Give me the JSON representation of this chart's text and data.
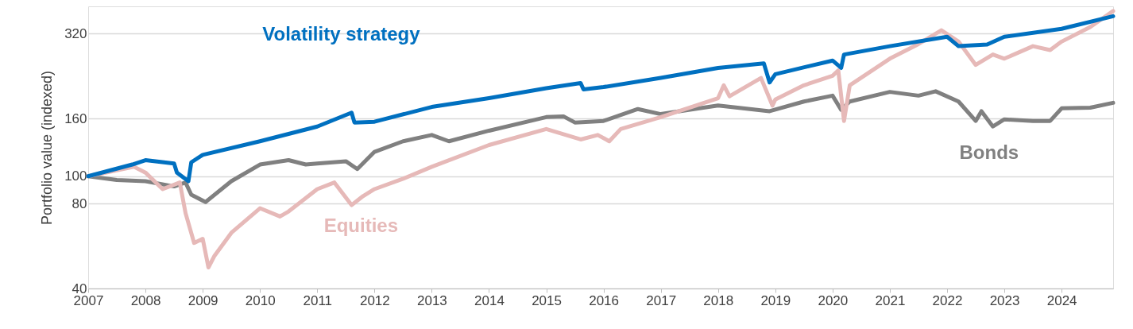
{
  "chart_data": {
    "type": "line",
    "ylabel": "Portfolio value (indexed)",
    "log": "y",
    "grid": "y",
    "legend": false,
    "marker": "none",
    "line_style": "solid",
    "xlim": [
      2007,
      2024.9
    ],
    "xticks": [
      2007,
      2008,
      2009,
      2010,
      2011,
      2012,
      2013,
      2014,
      2015,
      2016,
      2017,
      2018,
      2019,
      2020,
      2021,
      2022,
      2023,
      2024
    ],
    "ylim": [
      40,
      400
    ],
    "yticks": [
      40,
      80,
      100,
      160,
      320
    ],
    "series": [
      {
        "name": "Bonds",
        "color": "#808080",
        "x": [
          2007,
          2007.5,
          2008,
          2008.5,
          2008.7,
          2008.8,
          2009.05,
          2009.5,
          2010,
          2010.5,
          2010.8,
          2011,
          2011.5,
          2011.7,
          2012,
          2012.5,
          2013,
          2013.3,
          2014,
          2015,
          2015.3,
          2015.5,
          2016,
          2016.6,
          2017,
          2018,
          2018.9,
          2019.5,
          2020,
          2020.15,
          2020.3,
          2021,
          2021.5,
          2021.8,
          2022.2,
          2022.5,
          2022.6,
          2022.8,
          2023,
          2023.5,
          2023.8,
          2024,
          2024.5,
          2024.9
        ],
        "values": [
          100,
          97,
          96,
          92,
          95,
          86,
          81,
          96,
          110,
          114,
          110,
          111,
          113,
          106,
          122,
          133,
          140,
          133,
          145,
          162,
          163,
          155,
          157,
          173,
          166,
          178,
          170,
          184,
          193,
          172,
          184,
          199,
          193,
          200,
          184,
          157,
          170,
          150,
          159,
          157,
          157,
          174,
          175,
          182
        ]
      },
      {
        "name": "Equities",
        "color": "#e6b9b8",
        "x": [
          2007,
          2007.5,
          2007.8,
          2008,
          2008.3,
          2008.6,
          2008.7,
          2008.85,
          2009,
          2009.1,
          2009.2,
          2009.5,
          2010,
          2010.35,
          2010.5,
          2011,
          2011.3,
          2011.6,
          2011.8,
          2012,
          2012.5,
          2013,
          2014,
          2015,
          2015.6,
          2015.9,
          2016.1,
          2016.3,
          2017,
          2018,
          2018.1,
          2018.2,
          2018.75,
          2018.95,
          2019,
          2019.5,
          2020,
          2020.1,
          2020.2,
          2020.3,
          2021,
          2021.5,
          2021.9,
          2022.2,
          2022.5,
          2022.8,
          2023,
          2023.5,
          2023.8,
          2024,
          2024.5,
          2024.9
        ],
        "values": [
          100,
          105,
          108,
          103,
          90,
          95,
          74,
          58,
          60,
          47.5,
          52,
          63,
          77,
          72,
          75,
          90,
          95,
          79,
          85,
          90,
          98,
          108,
          129,
          147,
          135,
          140,
          133,
          147,
          162,
          189,
          210,
          192,
          223,
          178,
          187,
          210,
          227,
          237,
          157,
          210,
          261,
          294,
          329,
          300,
          248,
          270,
          261,
          289,
          280,
          300,
          338,
          385
        ]
      },
      {
        "name": "Volatility strategy",
        "color": "#0070c0",
        "x": [
          2007,
          2007.77,
          2008,
          2008.5,
          2008.55,
          2008.75,
          2008.8,
          2009,
          2010,
          2011,
          2011.6,
          2011.65,
          2012,
          2013,
          2014,
          2015,
          2015.6,
          2015.65,
          2016,
          2017,
          2018,
          2018.8,
          2018.9,
          2019,
          2020,
          2020.15,
          2020.2,
          2021,
          2022,
          2022.2,
          2022.7,
          2023,
          2024,
          2024.9
        ],
        "values": [
          100,
          110,
          114,
          111,
          103,
          96,
          112,
          119,
          133,
          150,
          168,
          155,
          156,
          176,
          189,
          205,
          214,
          203,
          207,
          223,
          242,
          251,
          215,
          230,
          257,
          242,
          270,
          289,
          312,
          289,
          293,
          312,
          333,
          369
        ]
      }
    ]
  }
}
